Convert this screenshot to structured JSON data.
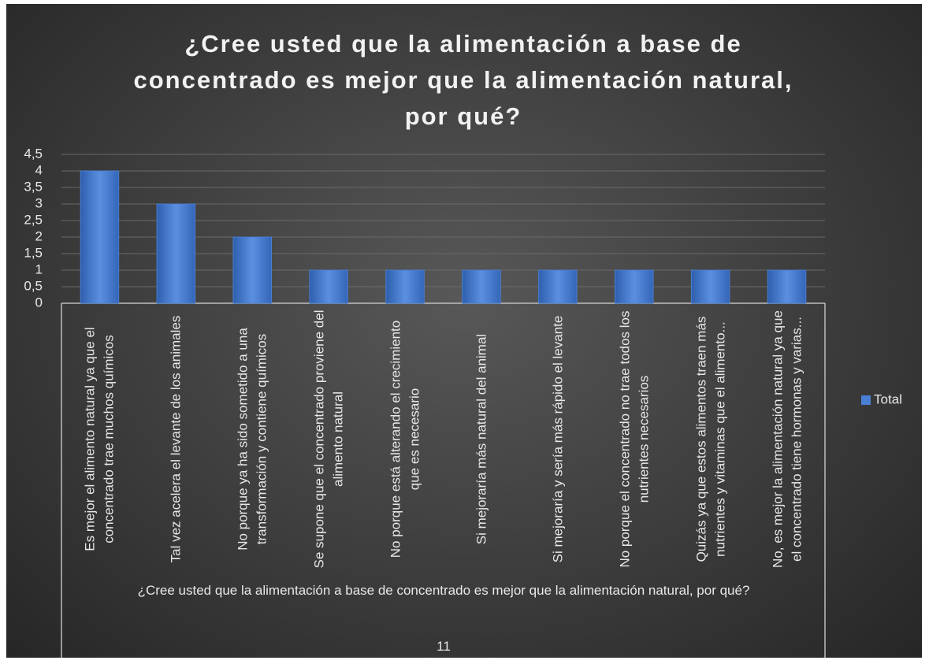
{
  "chart_data": {
    "type": "bar",
    "title": "¿Cree usted que la alimentación a base de concentrado es mejor que la alimentación natural, por qué?",
    "categories": [
      "Es mejor el alimento natural ya que el concentrado trae muchos químicos",
      "Tal vez acelera el levante de los animales",
      "No porque  ya ha sido sometido a una transformación y contiene químicos",
      "Se supone que el concentrado proviene del alimento natural",
      "No porque está alterando el crecimiento que es necesario",
      "Si mejoraría más natural del animal",
      "Si mejoraría y sería más rápido el levante",
      "No porque el concentrado no trae todos los nutrientes necesarios",
      "Quizás ya que estos alimentos traen más nutrientes y vitaminas que el alimento...",
      "No, es mejor la alimentación natural ya que el concentrado tiene hormonas y varias..."
    ],
    "series": [
      {
        "name": "Total",
        "color": "#4a7fd4",
        "values": [
          4,
          3,
          2,
          1,
          1,
          1,
          1,
          1,
          1,
          1
        ]
      }
    ],
    "x_group_label": "¿Cree usted  que la alimentación a base de concentrado es mejor  que la alimentación natural, por qué?",
    "x_group_sublabel": "11",
    "ylim": [
      0,
      4.5
    ],
    "yticks": [
      0,
      {
        "value": 0.5,
        "label": "0,5"
      },
      1,
      {
        "value": 1.5,
        "label": "1,5"
      },
      2,
      {
        "value": 2.5,
        "label": "2,5"
      },
      3,
      {
        "value": 3.5,
        "label": "3,5"
      },
      4,
      {
        "value": 4.5,
        "label": "4,5"
      }
    ],
    "grid": true,
    "legend": "right"
  }
}
